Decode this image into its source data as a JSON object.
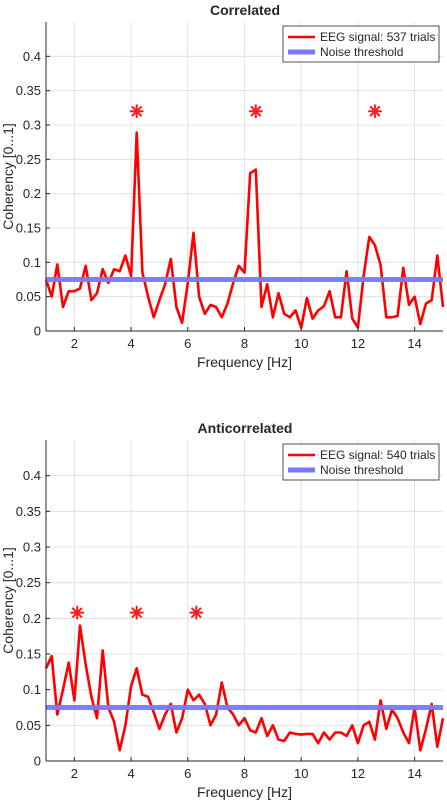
{
  "figure": {
    "panels": [
      {
        "title": "Correlated"
      },
      {
        "title": "Anticorrelated"
      }
    ]
  },
  "chart_data": [
    {
      "type": "line",
      "title": "Correlated",
      "xlabel": "Frequency [Hz]",
      "ylabel": "Coherency [0...1]",
      "xlim": [
        1,
        15
      ],
      "ylim": [
        0,
        0.45
      ],
      "xticks": [
        2,
        4,
        6,
        8,
        10,
        12,
        14
      ],
      "yticks": [
        0,
        0.05,
        0.1,
        0.15,
        0.2,
        0.25,
        0.3,
        0.35,
        0.4
      ],
      "ytick_labels": [
        "0",
        "0.05",
        "0.1",
        "0.15",
        "0.2",
        "0.25",
        "0.3",
        "0.35",
        "0.4"
      ],
      "grid": true,
      "legend_position": "top-right",
      "series": [
        {
          "name": "EEG signal: 537 trials",
          "color": "#ff0000",
          "x": [
            1.0,
            1.2,
            1.4,
            1.6,
            1.8,
            2.0,
            2.2,
            2.4,
            2.6,
            2.8,
            3.0,
            3.2,
            3.4,
            3.6,
            3.8,
            4.0,
            4.2,
            4.4,
            4.6,
            4.8,
            5.0,
            5.2,
            5.4,
            5.6,
            5.8,
            6.0,
            6.2,
            6.4,
            6.6,
            6.8,
            7.0,
            7.2,
            7.4,
            7.6,
            7.8,
            8.0,
            8.2,
            8.4,
            8.6,
            8.8,
            9.0,
            9.2,
            9.4,
            9.6,
            9.8,
            10.0,
            10.2,
            10.4,
            10.6,
            10.8,
            11.0,
            11.2,
            11.4,
            11.6,
            11.8,
            12.0,
            12.2,
            12.4,
            12.6,
            12.8,
            13.0,
            13.2,
            13.4,
            13.6,
            13.8,
            14.0,
            14.2,
            14.4,
            14.6,
            14.8,
            15.0
          ],
          "y": [
            0.075,
            0.05,
            0.097,
            0.035,
            0.058,
            0.058,
            0.062,
            0.095,
            0.045,
            0.055,
            0.09,
            0.07,
            0.09,
            0.087,
            0.11,
            0.08,
            0.289,
            0.085,
            0.05,
            0.02,
            0.045,
            0.068,
            0.105,
            0.035,
            0.012,
            0.07,
            0.143,
            0.05,
            0.025,
            0.038,
            0.035,
            0.02,
            0.04,
            0.07,
            0.095,
            0.085,
            0.23,
            0.235,
            0.035,
            0.068,
            0.02,
            0.055,
            0.025,
            0.02,
            0.03,
            0.005,
            0.048,
            0.018,
            0.03,
            0.036,
            0.058,
            0.02,
            0.02,
            0.087,
            0.018,
            0.005,
            0.08,
            0.137,
            0.125,
            0.096,
            0.02,
            0.02,
            0.022,
            0.092,
            0.038,
            0.05,
            0.01,
            0.04,
            0.045,
            0.11,
            0.035
          ]
        },
        {
          "name": "Noise threshold",
          "color": "#7777ff",
          "x": [
            1,
            15
          ],
          "y": [
            0.075,
            0.075
          ]
        }
      ],
      "significance_markers": {
        "symbol": "*",
        "color": "#ff1a1a",
        "x": [
          4.2,
          8.4,
          12.6
        ],
        "y": [
          0.32,
          0.32,
          0.32
        ]
      }
    },
    {
      "type": "line",
      "title": "Anticorrelated",
      "xlabel": "Frequency [Hz]",
      "ylabel": "Coherency [0...1]",
      "xlim": [
        1,
        15
      ],
      "ylim": [
        0,
        0.45
      ],
      "xticks": [
        2,
        4,
        6,
        8,
        10,
        12,
        14
      ],
      "yticks": [
        0,
        0.05,
        0.1,
        0.15,
        0.2,
        0.25,
        0.3,
        0.35,
        0.4
      ],
      "ytick_labels": [
        "0",
        "0.05",
        "0.1",
        "0.15",
        "0.2",
        "0.25",
        "0.3",
        "0.35",
        "0.4"
      ],
      "grid": true,
      "legend_position": "top-right",
      "series": [
        {
          "name": "EEG signal: 540 trials",
          "color": "#ff0000",
          "x": [
            1.0,
            1.2,
            1.4,
            1.6,
            1.8,
            2.0,
            2.2,
            2.4,
            2.6,
            2.8,
            3.0,
            3.2,
            3.4,
            3.6,
            3.8,
            4.0,
            4.2,
            4.4,
            4.6,
            4.8,
            5.0,
            5.2,
            5.4,
            5.6,
            5.8,
            6.0,
            6.2,
            6.4,
            6.6,
            6.8,
            7.0,
            7.2,
            7.4,
            7.6,
            7.8,
            8.0,
            8.2,
            8.4,
            8.6,
            8.8,
            9.0,
            9.2,
            9.4,
            9.6,
            9.8,
            10.0,
            10.2,
            10.4,
            10.6,
            10.8,
            11.0,
            11.2,
            11.4,
            11.6,
            11.8,
            12.0,
            12.2,
            12.4,
            12.6,
            12.8,
            13.0,
            13.2,
            13.4,
            13.6,
            13.8,
            14.0,
            14.2,
            14.4,
            14.6,
            14.8,
            15.0
          ],
          "y": [
            0.13,
            0.147,
            0.065,
            0.1,
            0.138,
            0.085,
            0.19,
            0.135,
            0.09,
            0.06,
            0.155,
            0.075,
            0.055,
            0.015,
            0.05,
            0.105,
            0.13,
            0.093,
            0.09,
            0.068,
            0.045,
            0.065,
            0.08,
            0.04,
            0.06,
            0.1,
            0.085,
            0.093,
            0.08,
            0.05,
            0.065,
            0.11,
            0.075,
            0.065,
            0.05,
            0.06,
            0.043,
            0.04,
            0.06,
            0.035,
            0.05,
            0.03,
            0.028,
            0.04,
            0.038,
            0.037,
            0.038,
            0.038,
            0.025,
            0.04,
            0.03,
            0.04,
            0.04,
            0.035,
            0.05,
            0.025,
            0.05,
            0.055,
            0.03,
            0.085,
            0.045,
            0.072,
            0.06,
            0.04,
            0.025,
            0.075,
            0.015,
            0.045,
            0.08,
            0.02,
            0.06
          ]
        },
        {
          "name": "Noise threshold",
          "color": "#7777ff",
          "x": [
            1,
            15
          ],
          "y": [
            0.075,
            0.075
          ]
        }
      ],
      "significance_markers": {
        "symbol": "*",
        "color": "#ff1a1a",
        "x": [
          2.1,
          4.2,
          6.3
        ],
        "y": [
          0.208,
          0.208,
          0.208
        ]
      }
    }
  ]
}
